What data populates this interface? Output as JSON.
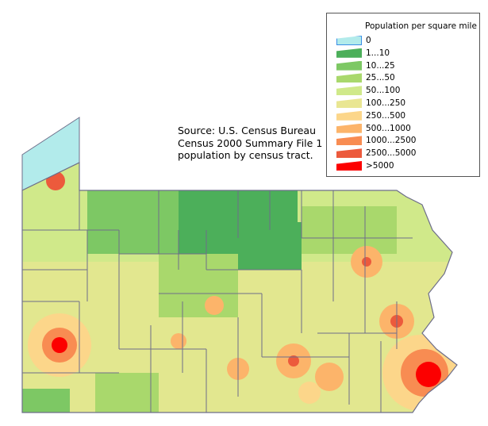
{
  "source_note": [
    "Source: U.S. Census Bureau",
    "Census 2000 Summary File 1",
    "population by census tract."
  ],
  "legend": {
    "title": "Population per square mile",
    "items": [
      {
        "label": "0",
        "color": "#b2ebeb"
      },
      {
        "label": "1...10",
        "color": "#4caf5a"
      },
      {
        "label": "10...25",
        "color": "#7dc864"
      },
      {
        "label": "25...50",
        "color": "#a9d86c"
      },
      {
        "label": "50...100",
        "color": "#d0e98a"
      },
      {
        "label": "100...250",
        "color": "#e9e692"
      },
      {
        "label": "250...500",
        "color": "#fcd68a"
      },
      {
        "label": "500...1000",
        "color": "#fcb46a"
      },
      {
        "label": "1000...2500",
        "color": "#f88c52"
      },
      {
        "label": "2500...5000",
        "color": "#ec5a3c"
      },
      {
        "label": ">5000",
        "color": "#fc0000"
      }
    ]
  },
  "colors": {
    "water": "#b2ebeb",
    "county_border": "#6e6e8a"
  }
}
